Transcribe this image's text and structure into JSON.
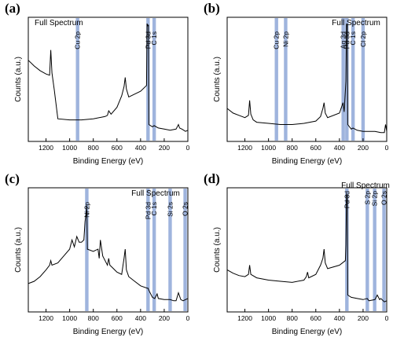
{
  "colors": {
    "band": "#9fb4dd",
    "line": "#000000",
    "axis": "#000000"
  },
  "chart_data": [
    {
      "type": "line",
      "panel": "(a)",
      "title": "Full Spectrum",
      "xlabel": "Binding Energy (eV)",
      "ylabel": "Counts (a.u.)",
      "xlim": [
        1350,
        0
      ],
      "xticks": [
        "1200",
        "1000",
        "800",
        "600",
        "400",
        "200",
        "0"
      ],
      "peaks": [
        {
          "label": "Cu 2p",
          "x": 933
        },
        {
          "label": "Pd 3d",
          "x": 337
        },
        {
          "label": "C 1s",
          "x": 285
        }
      ],
      "series": [
        {
          "x": [
            1350,
            1300,
            1250,
            1200,
            1170,
            1160,
            1150,
            1130,
            1100,
            1000,
            900,
            800,
            700,
            680,
            670,
            650,
            600,
            560,
            540,
            530,
            520,
            500,
            400,
            350,
            345,
            340,
            337,
            333,
            330,
            300,
            285,
            250,
            200,
            150,
            100,
            80,
            70,
            50,
            20,
            0
          ],
          "y": [
            0.68,
            0.63,
            0.59,
            0.56,
            0.55,
            0.77,
            0.57,
            0.42,
            0.17,
            0.16,
            0.16,
            0.17,
            0.19,
            0.2,
            0.24,
            0.21,
            0.27,
            0.37,
            0.45,
            0.53,
            0.43,
            0.36,
            0.41,
            0.46,
            1.0,
            0.98,
            0.98,
            0.99,
            0.12,
            0.1,
            0.11,
            0.09,
            0.08,
            0.07,
            0.08,
            0.12,
            0.09,
            0.08,
            0.06,
            0.07
          ]
        }
      ]
    },
    {
      "type": "line",
      "panel": "(b)",
      "title": "Full Spectrum",
      "xlabel": "Binding Energy (eV)",
      "ylabel": "Counts (a.u.)",
      "xlim": [
        1350,
        0
      ],
      "xticks": [
        "1200",
        "1000",
        "800",
        "600",
        "400",
        "200",
        "0"
      ],
      "peaks": [
        {
          "label": "Cu 2p",
          "x": 933
        },
        {
          "label": "Ni 2p",
          "x": 855
        },
        {
          "label": "Ag 3d",
          "x": 368
        },
        {
          "label": "Pd 3d",
          "x": 337
        },
        {
          "label": "C 1s",
          "x": 285
        },
        {
          "label": "Cl 2p",
          "x": 200
        }
      ],
      "series": [
        {
          "x": [
            1350,
            1300,
            1250,
            1200,
            1170,
            1160,
            1150,
            1130,
            1100,
            1000,
            900,
            800,
            700,
            600,
            560,
            540,
            530,
            520,
            500,
            400,
            370,
            360,
            345,
            340,
            337,
            333,
            330,
            300,
            285,
            250,
            200,
            150,
            100,
            50,
            20,
            10,
            0
          ],
          "y": [
            0.26,
            0.22,
            0.2,
            0.18,
            0.2,
            0.33,
            0.21,
            0.16,
            0.14,
            0.13,
            0.12,
            0.12,
            0.13,
            0.15,
            0.19,
            0.26,
            0.31,
            0.22,
            0.18,
            0.22,
            0.31,
            0.23,
            0.5,
            1.0,
            0.98,
            0.99,
            0.12,
            0.08,
            0.09,
            0.07,
            0.06,
            0.06,
            0.06,
            0.05,
            0.05,
            0.12,
            0.06
          ]
        }
      ]
    },
    {
      "type": "line",
      "panel": "(c)",
      "title": "Full Spectrum",
      "xlabel": "Binding Energy (eV)",
      "ylabel": "Counts (a.u.)",
      "xlim": [
        1350,
        0
      ],
      "xticks": [
        "1200",
        "1000",
        "800",
        "600",
        "400",
        "200",
        "0"
      ],
      "peaks": [
        {
          "label": "Ni 2p",
          "x": 855
        },
        {
          "label": "Pd 3d",
          "x": 337
        },
        {
          "label": "C 1s",
          "x": 285
        },
        {
          "label": "Si 2s",
          "x": 150
        },
        {
          "label": "O 2s",
          "x": 23
        }
      ],
      "series": [
        {
          "x": [
            1350,
            1300,
            1250,
            1200,
            1170,
            1160,
            1150,
            1100,
            1050,
            1000,
            980,
            960,
            940,
            920,
            900,
            880,
            870,
            860,
            855,
            850,
            800,
            760,
            750,
            740,
            720,
            700,
            680,
            670,
            660,
            640,
            620,
            600,
            560,
            540,
            530,
            520,
            500,
            450,
            400,
            345,
            337,
            330,
            300,
            280,
            260,
            250,
            200,
            150,
            120,
            100,
            80,
            60,
            40,
            20,
            0
          ],
          "y": [
            0.22,
            0.24,
            0.28,
            0.34,
            0.38,
            0.42,
            0.38,
            0.4,
            0.46,
            0.52,
            0.6,
            0.54,
            0.63,
            0.58,
            0.58,
            0.6,
            0.76,
            0.84,
            0.9,
            0.52,
            0.5,
            0.52,
            0.44,
            0.6,
            0.46,
            0.42,
            0.38,
            0.44,
            0.38,
            0.36,
            0.34,
            0.32,
            0.3,
            0.44,
            0.52,
            0.34,
            0.28,
            0.24,
            0.2,
            0.18,
            0.18,
            0.16,
            0.1,
            0.09,
            0.13,
            0.09,
            0.08,
            0.08,
            0.07,
            0.07,
            0.14,
            0.08,
            0.07,
            0.08,
            0.09
          ]
        }
      ]
    },
    {
      "type": "line",
      "panel": "(d)",
      "title": "Full Spectrum",
      "xlabel": "Binding Energy (eV)",
      "ylabel": "Counts (a.u.)",
      "xlim": [
        1350,
        0
      ],
      "xticks": [
        "1200",
        "1000",
        "800",
        "600",
        "400",
        "200",
        "0"
      ],
      "peaks": [
        {
          "label": "Pd 3d",
          "x": 337
        },
        {
          "label": "S 2p",
          "x": 164
        },
        {
          "label": "Si 2p",
          "x": 102
        },
        {
          "label": "O 2s",
          "x": 23
        }
      ],
      "series": [
        {
          "x": [
            1350,
            1300,
            1250,
            1200,
            1170,
            1160,
            1150,
            1100,
            1000,
            900,
            800,
            700,
            680,
            670,
            660,
            600,
            560,
            540,
            530,
            520,
            500,
            400,
            350,
            345,
            340,
            337,
            333,
            330,
            300,
            250,
            200,
            165,
            150,
            100,
            80,
            60,
            50,
            20,
            0
          ],
          "y": [
            0.34,
            0.31,
            0.29,
            0.28,
            0.3,
            0.38,
            0.3,
            0.27,
            0.25,
            0.24,
            0.23,
            0.25,
            0.28,
            0.32,
            0.27,
            0.3,
            0.38,
            0.44,
            0.52,
            0.4,
            0.35,
            0.38,
            0.42,
            0.56,
            1.0,
            0.98,
            0.99,
            0.12,
            0.1,
            0.09,
            0.08,
            0.09,
            0.07,
            0.08,
            0.12,
            0.08,
            0.09,
            0.06,
            0.07
          ]
        }
      ]
    }
  ]
}
